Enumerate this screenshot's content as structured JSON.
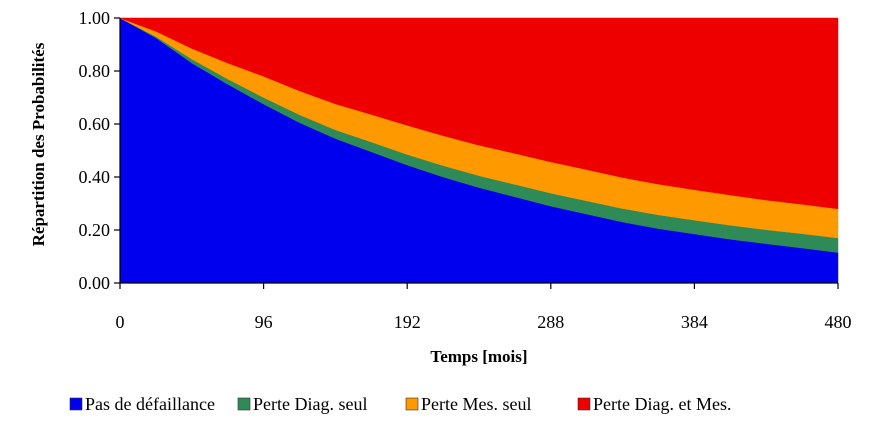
{
  "chart_data": {
    "type": "area",
    "stacked": true,
    "xlabel": "Temps [mois]",
    "ylabel": "Répartition des Probabilités",
    "xlim": [
      0,
      480
    ],
    "ylim": [
      0,
      1
    ],
    "x_ticks": [
      0,
      96,
      192,
      288,
      384,
      480
    ],
    "x_tick_labels": [
      "0",
      "96",
      "192",
      "288",
      "384",
      "480"
    ],
    "y_ticks": [
      0,
      0.2,
      0.4,
      0.6,
      0.8,
      1.0
    ],
    "y_tick_labels": [
      "0.00",
      "0.20",
      "0.40",
      "0.60",
      "0.80",
      "1.00"
    ],
    "grid": false,
    "legend_position": "bottom",
    "x": [
      0,
      24,
      48,
      72,
      96,
      120,
      144,
      168,
      192,
      216,
      240,
      264,
      288,
      312,
      336,
      360,
      384,
      408,
      432,
      456,
      480
    ],
    "series": [
      {
        "name": "Pas de défaillance",
        "color": "#0000ee",
        "values": [
          1.0,
          0.925,
          0.83,
          0.75,
          0.675,
          0.605,
          0.545,
          0.495,
          0.445,
          0.4,
          0.36,
          0.325,
          0.29,
          0.26,
          0.23,
          0.205,
          0.185,
          0.165,
          0.148,
          0.132,
          0.115
        ]
      },
      {
        "name": "Perte Diag. seul",
        "color": "#2e8b57",
        "values": [
          0.0,
          0.005,
          0.015,
          0.02,
          0.025,
          0.03,
          0.033,
          0.037,
          0.04,
          0.043,
          0.045,
          0.047,
          0.049,
          0.05,
          0.051,
          0.052,
          0.052,
          0.053,
          0.053,
          0.054,
          0.055
        ]
      },
      {
        "name": "Perte Mes. seul",
        "color": "#ff9900",
        "values": [
          0.0,
          0.02,
          0.04,
          0.06,
          0.08,
          0.09,
          0.098,
          0.104,
          0.11,
          0.113,
          0.115,
          0.117,
          0.118,
          0.118,
          0.117,
          0.116,
          0.115,
          0.114,
          0.112,
          0.111,
          0.11
        ]
      },
      {
        "name": "Perte Diag. et Mes.",
        "color": "#ee0000",
        "values": [
          0.0,
          0.05,
          0.115,
          0.17,
          0.22,
          0.275,
          0.324,
          0.364,
          0.405,
          0.444,
          0.48,
          0.511,
          0.543,
          0.572,
          0.602,
          0.627,
          0.648,
          0.668,
          0.687,
          0.703,
          0.72
        ]
      }
    ]
  }
}
